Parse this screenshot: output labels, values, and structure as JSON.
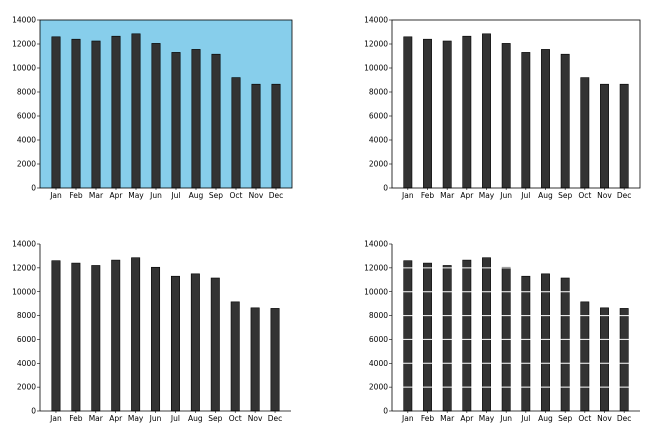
{
  "chart_data": [
    {
      "type": "bar",
      "categories": [
        "Jan",
        "Feb",
        "Mar",
        "Apr",
        "May",
        "Jun",
        "Jul",
        "Aug",
        "Sep",
        "Oct",
        "Nov",
        "Dec"
      ],
      "values": [
        12600,
        12400,
        12250,
        12650,
        12850,
        12050,
        11300,
        11550,
        11150,
        9200,
        8650,
        8650
      ],
      "ylim": [
        0,
        14000
      ],
      "yticks": [
        0,
        2000,
        4000,
        6000,
        8000,
        10000,
        12000,
        14000
      ],
      "style": {
        "plot_background": "#87ceeb",
        "bar_color": "#333333",
        "frame": "full",
        "grid": false
      }
    },
    {
      "type": "bar",
      "categories": [
        "Jan",
        "Feb",
        "Mar",
        "Apr",
        "May",
        "Jun",
        "Jul",
        "Aug",
        "Sep",
        "Oct",
        "Nov",
        "Dec"
      ],
      "values": [
        12600,
        12400,
        12250,
        12650,
        12850,
        12050,
        11300,
        11550,
        11150,
        9200,
        8650,
        8650
      ],
      "ylim": [
        0,
        14000
      ],
      "yticks": [
        0,
        2000,
        4000,
        6000,
        8000,
        10000,
        12000,
        14000
      ],
      "style": {
        "plot_background": "#ffffff",
        "bar_color": "#333333",
        "frame": "full",
        "grid": false
      }
    },
    {
      "type": "bar",
      "categories": [
        "Jan",
        "Feb",
        "Mar",
        "Apr",
        "May",
        "Jun",
        "Jul",
        "Aug",
        "Sep",
        "Oct",
        "Nov",
        "Dec"
      ],
      "values": [
        12600,
        12400,
        12200,
        12650,
        12850,
        12050,
        11300,
        11500,
        11150,
        9150,
        8650,
        8600
      ],
      "ylim": [
        0,
        14000
      ],
      "yticks": [
        0,
        2000,
        4000,
        6000,
        8000,
        10000,
        12000,
        14000
      ],
      "style": {
        "plot_background": "#ffffff",
        "bar_color": "#333333",
        "frame": "left-bottom",
        "grid": false
      }
    },
    {
      "type": "bar",
      "categories": [
        "Jan",
        "Feb",
        "Mar",
        "Apr",
        "May",
        "Jun",
        "Jul",
        "Aug",
        "Sep",
        "Oct",
        "Nov",
        "Dec"
      ],
      "values": [
        12600,
        12400,
        12200,
        12650,
        12850,
        12050,
        11300,
        11500,
        11150,
        9150,
        8650,
        8600
      ],
      "ylim": [
        0,
        14000
      ],
      "yticks": [
        0,
        2000,
        4000,
        6000,
        8000,
        10000,
        12000,
        14000
      ],
      "style": {
        "plot_background": "#ffffff",
        "bar_color": "#333333",
        "frame": "left-bottom",
        "grid": "white horizontal lines over bars"
      }
    }
  ]
}
